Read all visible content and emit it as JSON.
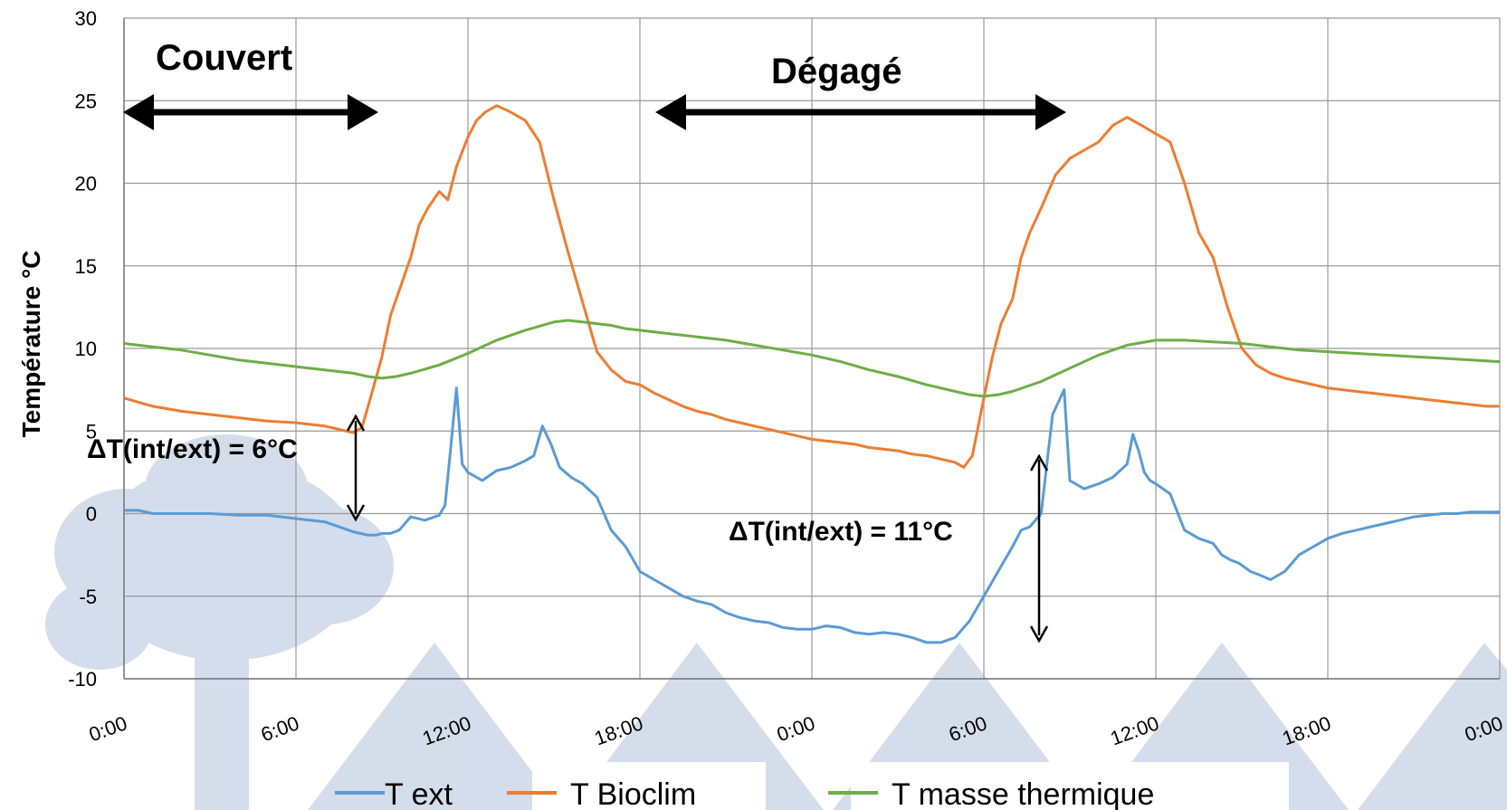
{
  "chart_data": {
    "type": "line",
    "title": "",
    "xlabel": "",
    "ylabel": "Température °C",
    "ylim": [
      -10,
      30
    ],
    "yticks": [
      "-10",
      "-5",
      "0",
      "5",
      "10",
      "15",
      "20",
      "25",
      "30"
    ],
    "xlim": [
      0,
      48
    ],
    "xticks": [
      "0:00",
      "6:00",
      "12:00",
      "18:00",
      "0:00",
      "6:00",
      "12:00",
      "18:00",
      "0:00"
    ],
    "grid": true,
    "legend_position": "bottom",
    "series": [
      {
        "name": "T ext",
        "color": "#5b9bd5",
        "x": [
          0,
          0.5,
          1,
          2,
          3,
          4,
          5,
          6,
          7,
          7.5,
          8,
          8.5,
          8.8,
          9,
          9.3,
          9.6,
          10,
          10.5,
          11,
          11.2,
          11.4,
          11.6,
          11.8,
          12,
          12.5,
          13,
          13.5,
          14,
          14.3,
          14.6,
          14.9,
          15.2,
          15.6,
          16,
          16.5,
          17,
          17.5,
          18,
          18.5,
          19,
          19.5,
          20,
          20.5,
          21,
          21.5,
          22,
          22.5,
          23,
          23.5,
          24,
          24.5,
          25,
          25.5,
          26,
          26.5,
          27,
          27.5,
          28,
          28.5,
          29,
          29.5,
          30,
          30.5,
          31,
          31.3,
          31.6,
          32,
          32.4,
          32.8,
          33,
          33.5,
          34,
          34.5,
          35,
          35.2,
          35.4,
          35.6,
          35.8,
          36,
          36.5,
          37,
          37.5,
          38,
          38.3,
          38.6,
          38.9,
          39.3,
          39.6,
          40,
          40.5,
          41,
          41.5,
          42,
          42.5,
          43,
          43.5,
          44,
          44.5,
          45,
          45.5,
          46,
          46.5,
          47,
          47.5,
          48
        ],
        "y": [
          0.2,
          0.2,
          0,
          0,
          0,
          -0.1,
          -0.1,
          -0.3,
          -0.5,
          -0.8,
          -1.1,
          -1.3,
          -1.3,
          -1.2,
          -1.2,
          -1,
          -0.2,
          -0.4,
          -0.1,
          0.5,
          4,
          7.6,
          3,
          2.5,
          2,
          2.6,
          2.8,
          3.2,
          3.5,
          5.3,
          4.2,
          2.8,
          2.2,
          1.8,
          1,
          -1,
          -2,
          -3.5,
          -4,
          -4.5,
          -5,
          -5.3,
          -5.5,
          -6,
          -6.3,
          -6.5,
          -6.6,
          -6.9,
          -7,
          -7,
          -6.8,
          -6.9,
          -7.2,
          -7.3,
          -7.2,
          -7.3,
          -7.5,
          -7.8,
          -7.8,
          -7.5,
          -6.5,
          -5,
          -3.5,
          -2,
          -1,
          -0.8,
          0,
          6,
          7.5,
          2,
          1.5,
          1.8,
          2.2,
          3,
          4.8,
          3.8,
          2.5,
          2,
          1.8,
          1.2,
          -1,
          -1.5,
          -1.8,
          -2.5,
          -2.8,
          -3,
          -3.5,
          -3.7,
          -4,
          -3.5,
          -2.5,
          -2,
          -1.5,
          -1.2,
          -1,
          -0.8,
          -0.6,
          -0.4,
          -0.2,
          -0.1,
          0,
          0,
          0.1,
          0.1,
          0.1
        ]
      },
      {
        "name": "T Bioclim",
        "color": "#ed7d31",
        "x": [
          0,
          1,
          2,
          3,
          4,
          5,
          6,
          7,
          7.5,
          8,
          8.3,
          8.6,
          9,
          9.3,
          9.6,
          10,
          10.3,
          10.6,
          11,
          11.3,
          11.6,
          12,
          12.3,
          12.6,
          13,
          13.5,
          14,
          14.5,
          15,
          15.5,
          16,
          16.5,
          17,
          17.5,
          18,
          18.5,
          19,
          19.5,
          20,
          20.5,
          21,
          21.5,
          22,
          22.5,
          23,
          23.5,
          24,
          24.5,
          25,
          25.5,
          26,
          26.5,
          27,
          27.5,
          28,
          28.5,
          29,
          29.3,
          29.6,
          30,
          30.3,
          30.6,
          31,
          31.3,
          31.6,
          32,
          32.5,
          33,
          33.5,
          34,
          34.5,
          35,
          35.5,
          36,
          36.5,
          37,
          37.5,
          38,
          38.5,
          39,
          39.5,
          40,
          40.5,
          41,
          41.5,
          42,
          42.5,
          43,
          43.5,
          44,
          44.5,
          45,
          45.5,
          46,
          46.5,
          47,
          47.5,
          48
        ],
        "y": [
          7,
          6.5,
          6.2,
          6,
          5.8,
          5.6,
          5.5,
          5.3,
          5.1,
          4.9,
          5.2,
          7,
          9.5,
          12,
          13.5,
          15.5,
          17.5,
          18.5,
          19.5,
          19,
          21,
          22.8,
          23.8,
          24.3,
          24.7,
          24.3,
          23.8,
          22.5,
          19,
          15.8,
          12.8,
          9.8,
          8.7,
          8,
          7.8,
          7.3,
          6.9,
          6.5,
          6.2,
          6,
          5.7,
          5.5,
          5.3,
          5.1,
          4.9,
          4.7,
          4.5,
          4.4,
          4.3,
          4.2,
          4,
          3.9,
          3.8,
          3.6,
          3.5,
          3.3,
          3.1,
          2.8,
          3.5,
          7,
          9.5,
          11.5,
          13,
          15.5,
          17,
          18.5,
          20.5,
          21.5,
          22,
          22.5,
          23.5,
          24,
          23.5,
          23,
          22.5,
          20,
          17,
          15.5,
          12.5,
          10,
          9,
          8.5,
          8.2,
          8,
          7.8,
          7.6,
          7.5,
          7.4,
          7.3,
          7.2,
          7.1,
          7,
          6.9,
          6.8,
          6.7,
          6.6,
          6.5,
          6.5
        ]
      },
      {
        "name": "T masse thermique",
        "color": "#70ad47",
        "x": [
          0,
          1,
          2,
          3,
          4,
          5,
          6,
          7,
          8,
          8.5,
          9,
          9.5,
          10,
          11,
          12,
          13,
          14,
          15,
          15.5,
          16,
          17,
          17.5,
          18,
          19,
          20,
          21,
          22,
          23,
          24,
          25,
          26,
          27,
          28,
          29,
          29.5,
          30,
          30.5,
          31,
          32,
          33,
          34,
          35,
          36,
          36.5,
          37,
          38,
          39,
          40,
          41,
          42,
          43,
          44,
          45,
          46,
          47,
          48
        ],
        "y": [
          10.3,
          10.1,
          9.9,
          9.6,
          9.3,
          9.1,
          8.9,
          8.7,
          8.5,
          8.3,
          8.2,
          8.3,
          8.5,
          9,
          9.7,
          10.5,
          11.1,
          11.6,
          11.7,
          11.6,
          11.4,
          11.2,
          11.1,
          10.9,
          10.7,
          10.5,
          10.2,
          9.9,
          9.6,
          9.2,
          8.7,
          8.3,
          7.8,
          7.4,
          7.2,
          7.1,
          7.2,
          7.4,
          8,
          8.8,
          9.6,
          10.2,
          10.5,
          10.5,
          10.5,
          10.4,
          10.3,
          10.1,
          9.9,
          9.8,
          9.7,
          9.6,
          9.5,
          9.4,
          9.3,
          9.2
        ]
      }
    ],
    "annotations": {
      "couvert": "Couvert",
      "degage": "Dégagé",
      "delta1": "ΔT(int/ext) = 6°C",
      "delta2": "ΔT(int/ext) = 11°C"
    }
  }
}
